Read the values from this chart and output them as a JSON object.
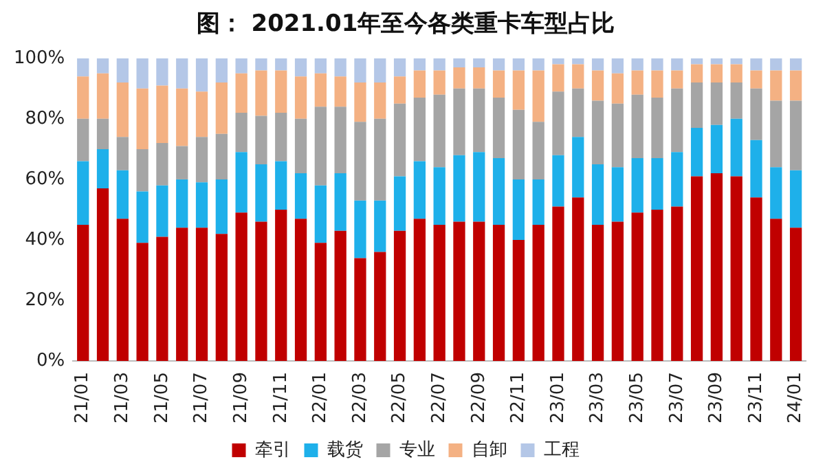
{
  "chart_data": {
    "type": "bar",
    "title": "图： 2021.01年至今各类重卡车型占比",
    "stacked": true,
    "legend": "bottom",
    "grid": false,
    "categories": [
      "21/01",
      null,
      "21/03",
      null,
      "21/05",
      null,
      "21/07",
      null,
      "21/09",
      null,
      "21/11",
      null,
      "22/01",
      null,
      "22/03",
      null,
      "22/05",
      null,
      "22/07",
      null,
      "22/09",
      null,
      "22/11",
      null,
      "23/01",
      null,
      "23/03",
      null,
      "23/05",
      null,
      "23/07",
      null,
      "23/09",
      null,
      "23/11",
      null,
      "24/01"
    ],
    "ylim": [
      0,
      100
    ],
    "yticks": [
      {
        "value": 0,
        "label": "0%"
      },
      {
        "value": 20,
        "label": "20%"
      },
      {
        "value": 40,
        "label": "40%"
      },
      {
        "value": 60,
        "label": "60%"
      },
      {
        "value": 80,
        "label": "80%"
      },
      {
        "value": 100,
        "label": "100%"
      }
    ],
    "series": [
      {
        "name": "牵引",
        "color": "#c00000",
        "values": [
          45,
          57,
          47,
          39,
          41,
          44,
          44,
          42,
          49,
          46,
          50,
          47,
          39,
          43,
          34,
          36,
          43,
          47,
          45,
          46,
          46,
          45,
          40,
          45,
          51,
          54,
          45,
          46,
          49,
          50,
          51,
          61,
          62,
          61,
          54,
          47,
          44
        ]
      },
      {
        "name": "载货",
        "color": "#1eb0ea",
        "values": [
          21,
          13,
          16,
          17,
          17,
          16,
          15,
          18,
          20,
          19,
          16,
          15,
          19,
          19,
          19,
          17,
          18,
          19,
          19,
          22,
          23,
          22,
          20,
          15,
          17,
          20,
          20,
          18,
          18,
          17,
          18,
          16,
          16,
          19,
          19,
          17,
          19
        ]
      },
      {
        "name": "专业",
        "color": "#a5a5a5",
        "values": [
          14,
          10,
          11,
          14,
          14,
          11,
          15,
          15,
          13,
          16,
          16,
          18,
          26,
          22,
          26,
          27,
          24,
          21,
          24,
          22,
          21,
          20,
          23,
          19,
          21,
          16,
          21,
          21,
          21,
          20,
          21,
          15,
          14,
          12,
          17,
          22,
          23
        ]
      },
      {
        "name": "自卸",
        "color": "#f4b183",
        "values": [
          14,
          15,
          18,
          20,
          19,
          19,
          15,
          17,
          13,
          15,
          14,
          14,
          11,
          10,
          13,
          12,
          9,
          9,
          8,
          7,
          7,
          9,
          13,
          17,
          9,
          8,
          10,
          10,
          8,
          9,
          6,
          6,
          6,
          6,
          6,
          10,
          10
        ]
      },
      {
        "name": "工程",
        "color": "#b4c7e7",
        "values": [
          6,
          5,
          8,
          10,
          9,
          10,
          11,
          8,
          5,
          4,
          4,
          6,
          5,
          6,
          8,
          8,
          6,
          4,
          4,
          3,
          3,
          4,
          4,
          4,
          2,
          2,
          4,
          5,
          4,
          4,
          4,
          2,
          2,
          2,
          4,
          4,
          4
        ]
      }
    ]
  }
}
